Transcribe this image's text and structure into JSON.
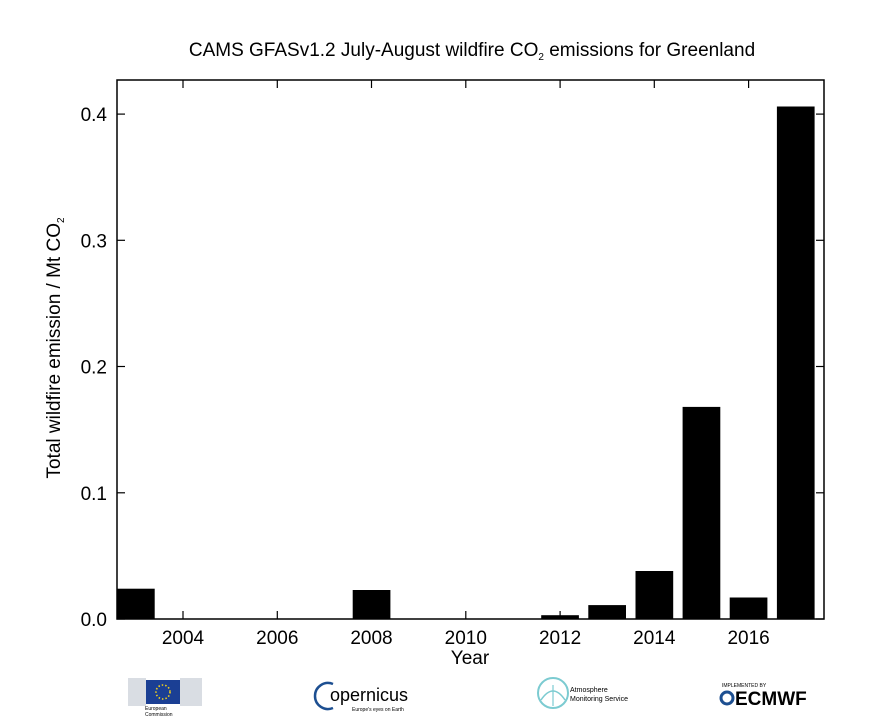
{
  "chart_data": {
    "type": "bar",
    "title_parts": [
      "CAMS GFASv1.2 July-August wildfire CO",
      "2",
      " emissions for Greenland"
    ],
    "xlabel": "Year",
    "ylabel_parts": [
      "Total wildfire emission / Mt CO",
      "2"
    ],
    "x": [
      2003,
      2004,
      2005,
      2006,
      2007,
      2008,
      2009,
      2010,
      2011,
      2012,
      2013,
      2014,
      2015,
      2016,
      2017
    ],
    "values": [
      0.024,
      0.0,
      0.0,
      0.0,
      0.0,
      0.023,
      0.0,
      0.0,
      0.0,
      0.003,
      0.011,
      0.038,
      0.168,
      0.017,
      0.406
    ],
    "xlim": [
      2002.6,
      2017.6
    ],
    "ylim": [
      0,
      0.427
    ],
    "x_ticks": [
      2004,
      2006,
      2008,
      2010,
      2012,
      2014,
      2016
    ],
    "x_tick_labels": [
      "2004",
      "2006",
      "2008",
      "2010",
      "2012",
      "2014",
      "2016"
    ],
    "y_ticks": [
      0.0,
      0.1,
      0.2,
      0.3,
      0.4
    ],
    "y_tick_labels": [
      "0.0",
      "0.1",
      "0.2",
      "0.3",
      "0.4"
    ],
    "bar_color": "#000000",
    "grid": false
  },
  "logos": {
    "ec": {
      "line1": "European",
      "line2": "Commission"
    },
    "copernicus": {
      "name": "opernicus",
      "tagline": "Europe's eyes on Earth"
    },
    "atmosphere": {
      "line1": "Atmosphere",
      "line2": "Monitoring Service",
      "color": "#7ccbd1"
    },
    "ecmwf": {
      "top": "IMPLEMENTED BY",
      "name": "ECMWF",
      "color": "#1d4f91"
    }
  }
}
